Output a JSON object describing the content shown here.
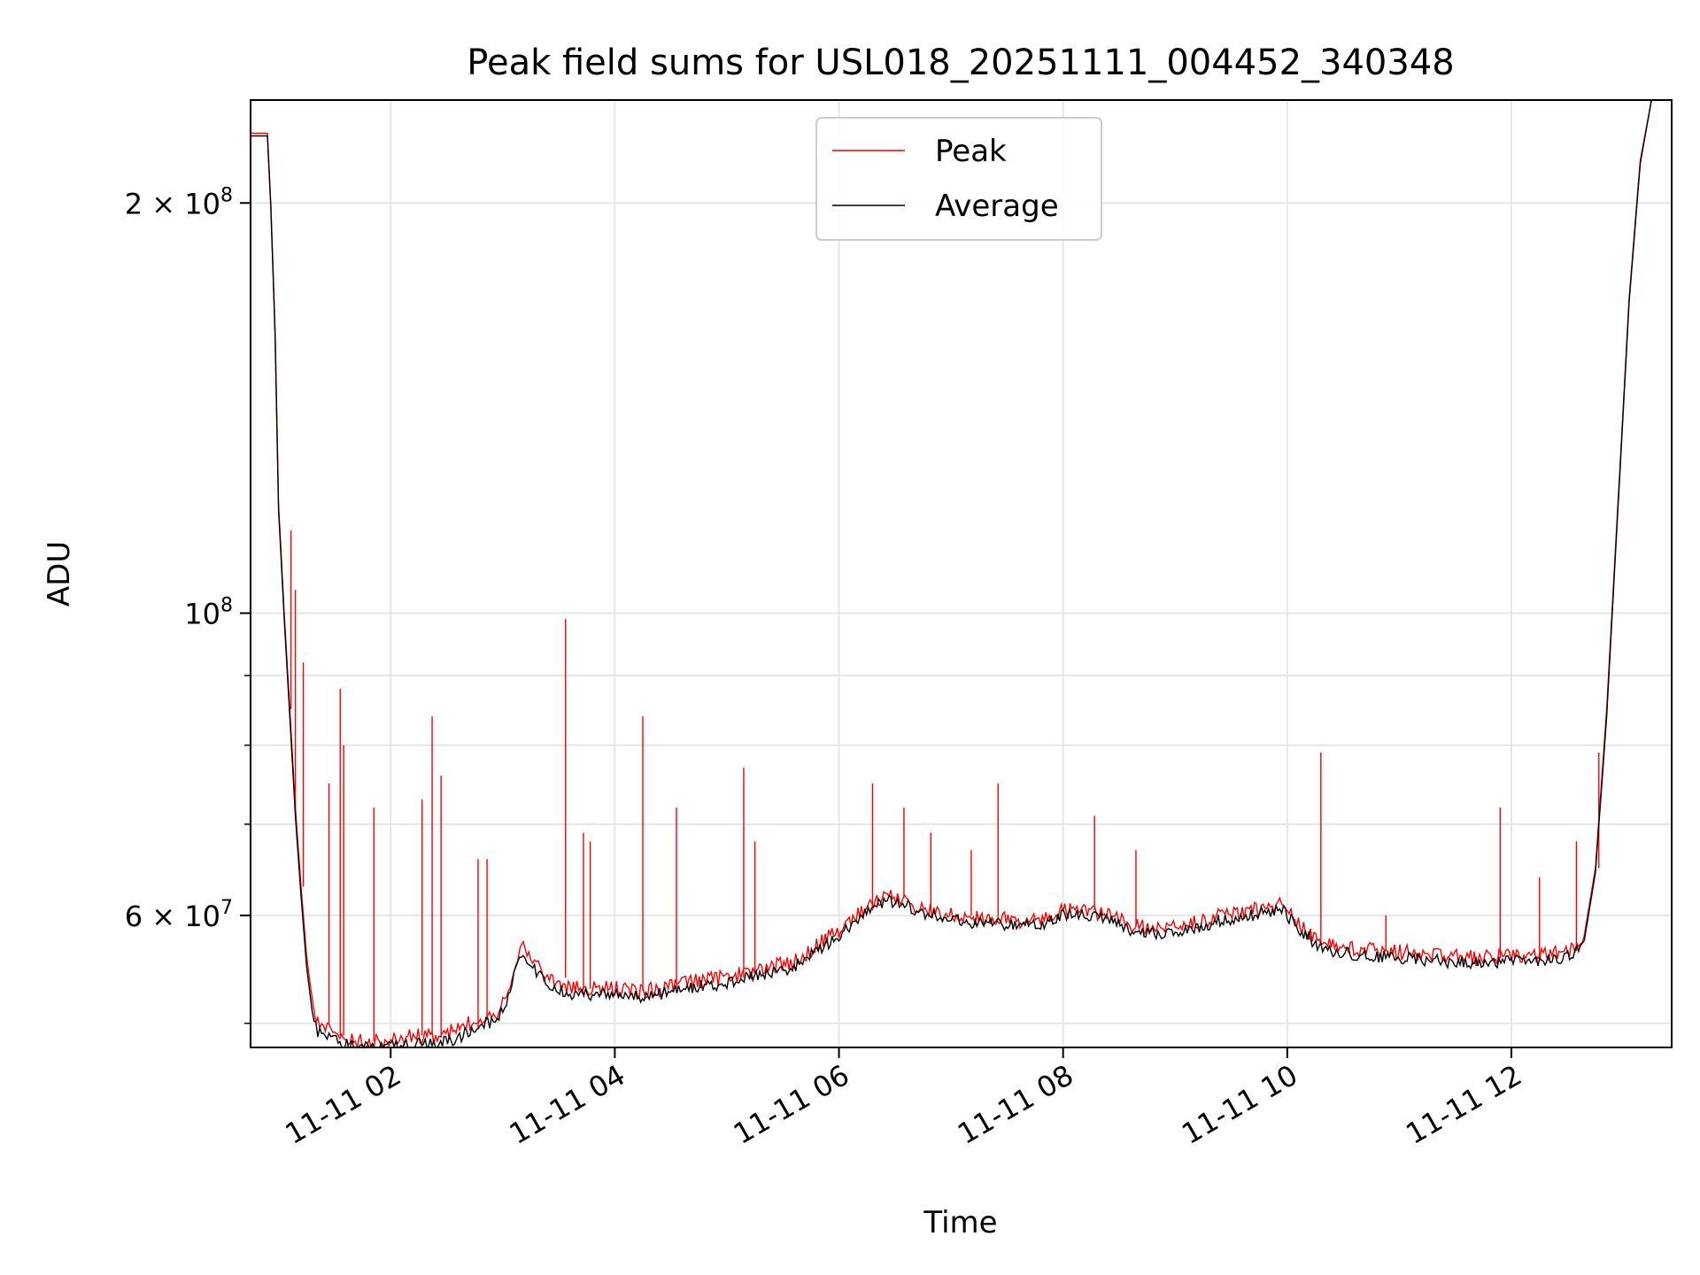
{
  "chart_data": {
    "type": "line",
    "title": "Peak field sums for USL018_20251111_004452_340348",
    "xlabel": "Time",
    "ylabel": "ADU",
    "yscale": "log",
    "xlim_hours": [
      0.75,
      13.43
    ],
    "ylim": [
      48000000,
      238000000
    ],
    "grid": true,
    "legend_position": "upper-center",
    "x_ticks": [
      {
        "value": 2,
        "label": "11-11 02"
      },
      {
        "value": 4,
        "label": "11-11 04"
      },
      {
        "value": 6,
        "label": "11-11 06"
      },
      {
        "value": 8,
        "label": "11-11 08"
      },
      {
        "value": 10,
        "label": "11-11 10"
      },
      {
        "value": 12,
        "label": "11-11 12"
      }
    ],
    "y_major_ticks": [
      {
        "value": 60000000,
        "mantissa": "6",
        "base": "10",
        "exp": "7"
      },
      {
        "value": 100000000,
        "mantissa": "",
        "base": "10",
        "exp": "8"
      },
      {
        "value": 200000000,
        "mantissa": "2",
        "base": "10",
        "exp": "8"
      }
    ],
    "y_minor_ticks": [
      50000000,
      70000000,
      80000000,
      90000000
    ],
    "series": [
      {
        "name": "Peak",
        "color": "#ff0000",
        "x_hours": [
          0.75,
          0.9,
          0.93,
          0.97,
          1.0,
          1.05,
          1.1,
          1.15,
          1.2,
          1.25,
          1.3,
          1.35,
          1.5,
          1.7,
          1.9,
          2.0,
          2.2,
          2.4,
          2.6,
          2.8,
          2.95,
          3.05,
          3.15,
          3.25,
          3.4,
          3.6,
          3.8,
          4.0,
          4.2,
          4.4,
          4.6,
          4.8,
          5.0,
          5.2,
          5.4,
          5.6,
          5.8,
          6.0,
          6.2,
          6.4,
          6.6,
          6.8,
          7.0,
          7.2,
          7.4,
          7.6,
          7.8,
          8.0,
          8.2,
          8.4,
          8.6,
          8.8,
          9.0,
          9.2,
          9.4,
          9.6,
          9.8,
          9.95,
          10.1,
          10.3,
          10.5,
          10.8,
          11.1,
          11.4,
          11.7,
          12.0,
          12.3,
          12.55,
          12.65,
          12.75,
          12.85,
          12.95,
          13.05,
          13.15,
          13.25,
          13.35,
          13.43
        ],
        "values": [
          225000000,
          225000000,
          200000000,
          160000000,
          120000000,
          100000000,
          85000000,
          72000000,
          63000000,
          56000000,
          52000000,
          50000000,
          49000000,
          48500000,
          48500000,
          48500000,
          49000000,
          48800000,
          49500000,
          50500000,
          51000000,
          53000000,
          57000000,
          56000000,
          54000000,
          53000000,
          53000000,
          53000000,
          52800000,
          53000000,
          53500000,
          53800000,
          54000000,
          54500000,
          55000000,
          55500000,
          57000000,
          58500000,
          60500000,
          62000000,
          61500000,
          60500000,
          60000000,
          59800000,
          59700000,
          59500000,
          59500000,
          60500000,
          60500000,
          60000000,
          59000000,
          58700000,
          58900000,
          59300000,
          60000000,
          60300000,
          60800000,
          61300000,
          59000000,
          57300000,
          56800000,
          56500000,
          56300000,
          56000000,
          55800000,
          56000000,
          56100000,
          56500000,
          58000000,
          65000000,
          85000000,
          120000000,
          170000000,
          215000000,
          238000000,
          238000000,
          238000000
        ]
      },
      {
        "name": "Average",
        "color": "#000000",
        "x_hours": [
          0.75,
          0.9,
          0.93,
          0.97,
          1.0,
          1.05,
          1.1,
          1.15,
          1.2,
          1.25,
          1.3,
          1.35,
          1.5,
          1.7,
          1.9,
          2.0,
          2.2,
          2.4,
          2.6,
          2.8,
          2.95,
          3.05,
          3.15,
          3.25,
          3.4,
          3.6,
          3.8,
          4.0,
          4.2,
          4.4,
          4.6,
          4.8,
          5.0,
          5.2,
          5.4,
          5.6,
          5.8,
          6.0,
          6.2,
          6.4,
          6.6,
          6.8,
          7.0,
          7.2,
          7.4,
          7.6,
          7.8,
          8.0,
          8.2,
          8.4,
          8.6,
          8.8,
          9.0,
          9.2,
          9.4,
          9.6,
          9.8,
          9.95,
          10.1,
          10.3,
          10.5,
          10.8,
          11.1,
          11.4,
          11.7,
          12.0,
          12.3,
          12.55,
          12.65,
          12.75,
          12.85,
          12.95,
          13.05,
          13.15,
          13.25,
          13.35,
          13.43
        ],
        "values": [
          224000000,
          224000000,
          199000000,
          159000000,
          119000000,
          99000000,
          84000000,
          71000000,
          62000000,
          55000000,
          51000000,
          49300000,
          48500000,
          48000000,
          48000000,
          48000000,
          48300000,
          48200000,
          48800000,
          49800000,
          50300000,
          52300000,
          56300000,
          55300000,
          53300000,
          52500000,
          52500000,
          52500000,
          52300000,
          52500000,
          53000000,
          53300000,
          53500000,
          54000000,
          54500000,
          55000000,
          56500000,
          58000000,
          60000000,
          61500000,
          61000000,
          60000000,
          59500000,
          59300000,
          59200000,
          59000000,
          59000000,
          60000000,
          60000000,
          59500000,
          58500000,
          58200000,
          58400000,
          58800000,
          59500000,
          59800000,
          60300000,
          60800000,
          58500000,
          56800000,
          56300000,
          56000000,
          55800000,
          55500000,
          55300000,
          55500000,
          55600000,
          56000000,
          57500000,
          64500000,
          84000000,
          119000000,
          169000000,
          214000000,
          238000000,
          238000000,
          238000000
        ]
      }
    ],
    "spikes": [
      {
        "x_hours": 1.11,
        "value": 115000000
      },
      {
        "x_hours": 1.15,
        "value": 104000000
      },
      {
        "x_hours": 1.22,
        "value": 92000000
      },
      {
        "x_hours": 1.45,
        "value": 75000000
      },
      {
        "x_hours": 1.55,
        "value": 88000000
      },
      {
        "x_hours": 1.58,
        "value": 80000000
      },
      {
        "x_hours": 1.85,
        "value": 72000000
      },
      {
        "x_hours": 2.28,
        "value": 73000000
      },
      {
        "x_hours": 2.37,
        "value": 84000000
      },
      {
        "x_hours": 2.45,
        "value": 76000000
      },
      {
        "x_hours": 2.78,
        "value": 66000000
      },
      {
        "x_hours": 2.86,
        "value": 66000000
      },
      {
        "x_hours": 3.56,
        "value": 99000000
      },
      {
        "x_hours": 3.72,
        "value": 69000000
      },
      {
        "x_hours": 3.78,
        "value": 68000000
      },
      {
        "x_hours": 4.25,
        "value": 84000000
      },
      {
        "x_hours": 4.55,
        "value": 72000000
      },
      {
        "x_hours": 5.15,
        "value": 77000000
      },
      {
        "x_hours": 5.25,
        "value": 68000000
      },
      {
        "x_hours": 6.3,
        "value": 75000000
      },
      {
        "x_hours": 6.58,
        "value": 72000000
      },
      {
        "x_hours": 6.82,
        "value": 69000000
      },
      {
        "x_hours": 7.18,
        "value": 67000000
      },
      {
        "x_hours": 7.42,
        "value": 75000000
      },
      {
        "x_hours": 8.28,
        "value": 71000000
      },
      {
        "x_hours": 8.65,
        "value": 67000000
      },
      {
        "x_hours": 10.3,
        "value": 79000000
      },
      {
        "x_hours": 10.88,
        "value": 60000000
      },
      {
        "x_hours": 11.9,
        "value": 72000000
      },
      {
        "x_hours": 12.25,
        "value": 64000000
      },
      {
        "x_hours": 12.58,
        "value": 68000000
      },
      {
        "x_hours": 12.78,
        "value": 79000000
      }
    ]
  }
}
